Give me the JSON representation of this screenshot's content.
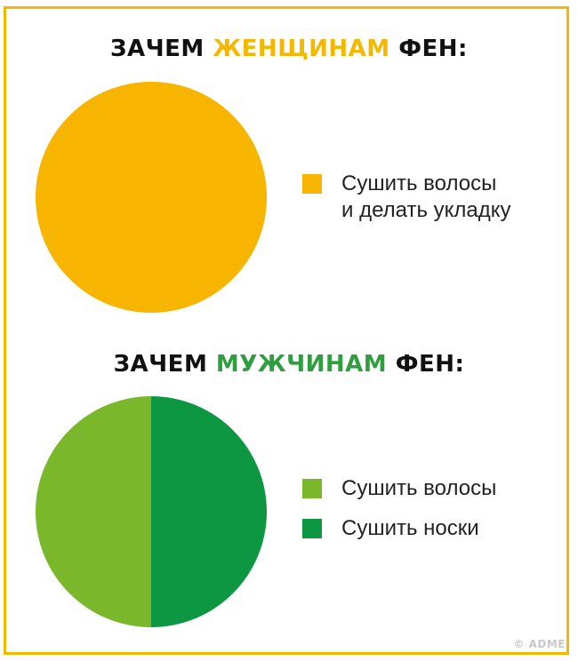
{
  "chart_data": [
    {
      "type": "pie",
      "title_parts": [
        "ЗАЧЕМ ",
        "ЖЕНЩИНАМ",
        " ФЕН:"
      ],
      "slices": [
        {
          "label": "Сушить волосы\nи делать укладку",
          "value": 100,
          "color": "#f8b500"
        }
      ],
      "legend_position": "right"
    },
    {
      "type": "pie",
      "title_parts": [
        "ЗАЧЕМ ",
        "МУЖЧИНАМ",
        " ФЕН:"
      ],
      "slices": [
        {
          "label": "Сушить волосы",
          "value": 50,
          "color": "#7ab72a"
        },
        {
          "label": "Сушить носки",
          "value": 50,
          "color": "#0e9743"
        }
      ],
      "legend_position": "right"
    }
  ],
  "colors": {
    "frame": "#f5b800",
    "women_highlight": "#f5b800",
    "men_highlight": "#2e9e3f"
  },
  "watermark": "© ADME"
}
